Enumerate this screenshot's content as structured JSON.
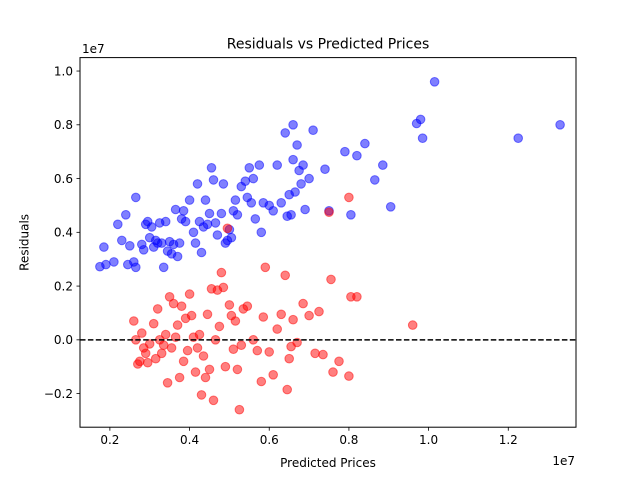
{
  "chart_data": {
    "type": "scatter",
    "title": "Residuals vs Predicted Prices",
    "xlabel": "Predicted Prices",
    "ylabel": "Residuals",
    "x_offset_label": "1e7",
    "y_offset_label": "1e7",
    "xlim": [
      1.25,
      13.7
    ],
    "ylim": [
      -3.25,
      10.5
    ],
    "x_ticks": [
      2,
      4,
      6,
      8,
      10,
      12
    ],
    "x_tick_labels": [
      "0.2",
      "0.4",
      "0.6",
      "0.8",
      "1.0",
      "1.2"
    ],
    "y_ticks": [
      -2,
      0,
      2,
      4,
      6,
      8,
      10
    ],
    "y_tick_labels": [
      "−0.2",
      "0.0",
      "0.2",
      "0.4",
      "0.6",
      "0.8",
      "1.0"
    ],
    "grid": false,
    "reference_line": {
      "y": 0,
      "style": "dashed",
      "color": "#000000"
    },
    "series": [
      {
        "color": "#0000ff",
        "points": [
          [
            1.75,
            2.72
          ],
          [
            1.85,
            3.45
          ],
          [
            1.9,
            2.8
          ],
          [
            2.1,
            2.9
          ],
          [
            2.2,
            4.3
          ],
          [
            2.3,
            3.7
          ],
          [
            2.4,
            4.65
          ],
          [
            2.45,
            2.8
          ],
          [
            2.5,
            3.5
          ],
          [
            2.6,
            2.9
          ],
          [
            2.65,
            5.3
          ],
          [
            2.65,
            2.7
          ],
          [
            2.8,
            3.55
          ],
          [
            2.85,
            3.35
          ],
          [
            2.9,
            4.3
          ],
          [
            2.95,
            4.4
          ],
          [
            3.0,
            3.8
          ],
          [
            3.05,
            4.2
          ],
          [
            3.1,
            3.45
          ],
          [
            3.15,
            3.7
          ],
          [
            3.2,
            3.6
          ],
          [
            3.25,
            4.35
          ],
          [
            3.3,
            3.6
          ],
          [
            3.35,
            2.7
          ],
          [
            3.4,
            4.4
          ],
          [
            3.45,
            3.3
          ],
          [
            3.5,
            3.65
          ],
          [
            3.55,
            3.2
          ],
          [
            3.6,
            3.55
          ],
          [
            3.65,
            4.85
          ],
          [
            3.7,
            3.1
          ],
          [
            3.75,
            3.6
          ],
          [
            3.8,
            4.5
          ],
          [
            3.85,
            4.8
          ],
          [
            3.9,
            4.4
          ],
          [
            4.0,
            5.2
          ],
          [
            4.1,
            4.0
          ],
          [
            4.15,
            3.6
          ],
          [
            4.2,
            5.8
          ],
          [
            4.25,
            4.4
          ],
          [
            4.3,
            3.25
          ],
          [
            4.35,
            4.2
          ],
          [
            4.4,
            5.2
          ],
          [
            4.45,
            4.3
          ],
          [
            4.5,
            4.7
          ],
          [
            4.55,
            6.4
          ],
          [
            4.6,
            5.95
          ],
          [
            4.65,
            4.35
          ],
          [
            4.7,
            3.9
          ],
          [
            4.8,
            4.7
          ],
          [
            4.85,
            5.8
          ],
          [
            4.9,
            3.6
          ],
          [
            4.95,
            3.7
          ],
          [
            5.0,
            4.1
          ],
          [
            5.05,
            3.8
          ],
          [
            5.1,
            4.8
          ],
          [
            5.15,
            5.2
          ],
          [
            5.2,
            4.65
          ],
          [
            5.3,
            5.7
          ],
          [
            5.4,
            5.9
          ],
          [
            5.45,
            5.3
          ],
          [
            5.5,
            6.4
          ],
          [
            5.55,
            5.1
          ],
          [
            5.6,
            6.0
          ],
          [
            5.65,
            4.5
          ],
          [
            5.75,
            6.5
          ],
          [
            5.8,
            4.0
          ],
          [
            5.85,
            5.1
          ],
          [
            6.0,
            5.0
          ],
          [
            6.1,
            4.8
          ],
          [
            6.2,
            6.5
          ],
          [
            6.3,
            5.1
          ],
          [
            6.4,
            7.7
          ],
          [
            6.45,
            4.6
          ],
          [
            6.5,
            5.4
          ],
          [
            6.55,
            4.65
          ],
          [
            6.6,
            8.0
          ],
          [
            6.6,
            6.7
          ],
          [
            6.65,
            5.5
          ],
          [
            6.7,
            7.25
          ],
          [
            6.75,
            6.3
          ],
          [
            6.8,
            5.8
          ],
          [
            6.85,
            6.5
          ],
          [
            6.9,
            4.85
          ],
          [
            7.0,
            6.0
          ],
          [
            7.1,
            7.8
          ],
          [
            7.4,
            6.35
          ],
          [
            7.5,
            4.8
          ],
          [
            7.9,
            7.0
          ],
          [
            8.05,
            4.65
          ],
          [
            8.2,
            6.85
          ],
          [
            8.4,
            7.3
          ],
          [
            8.65,
            5.95
          ],
          [
            8.85,
            6.5
          ],
          [
            9.05,
            4.95
          ],
          [
            9.7,
            8.05
          ],
          [
            9.8,
            8.2
          ],
          [
            9.85,
            7.5
          ],
          [
            10.15,
            9.6
          ],
          [
            12.25,
            7.5
          ],
          [
            13.3,
            8.0
          ]
        ]
      },
      {
        "color": "#ff0000",
        "points": [
          [
            2.6,
            0.7
          ],
          [
            2.65,
            0.0
          ],
          [
            2.7,
            -0.9
          ],
          [
            2.75,
            -0.8
          ],
          [
            2.8,
            0.25
          ],
          [
            2.85,
            -0.3
          ],
          [
            2.9,
            -0.5
          ],
          [
            2.95,
            -0.85
          ],
          [
            3.0,
            -0.15
          ],
          [
            3.1,
            0.6
          ],
          [
            3.15,
            -0.7
          ],
          [
            3.2,
            1.15
          ],
          [
            3.25,
            0.0
          ],
          [
            3.3,
            -0.5
          ],
          [
            3.35,
            -0.2
          ],
          [
            3.4,
            0.2
          ],
          [
            3.45,
            -1.6
          ],
          [
            3.5,
            1.6
          ],
          [
            3.55,
            -0.3
          ],
          [
            3.6,
            1.35
          ],
          [
            3.65,
            0.1
          ],
          [
            3.7,
            0.55
          ],
          [
            3.75,
            -1.4
          ],
          [
            3.8,
            1.25
          ],
          [
            3.85,
            -0.8
          ],
          [
            3.9,
            0.8
          ],
          [
            3.95,
            -0.4
          ],
          [
            4.0,
            1.7
          ],
          [
            4.05,
            0.9
          ],
          [
            4.1,
            0.1
          ],
          [
            4.15,
            -1.2
          ],
          [
            4.2,
            -0.3
          ],
          [
            4.25,
            0.2
          ],
          [
            4.3,
            -2.05
          ],
          [
            4.35,
            -0.6
          ],
          [
            4.4,
            -1.4
          ],
          [
            4.45,
            0.95
          ],
          [
            4.5,
            -1.1
          ],
          [
            4.55,
            1.9
          ],
          [
            4.6,
            -2.25
          ],
          [
            4.65,
            0.0
          ],
          [
            4.7,
            1.85
          ],
          [
            4.75,
            0.5
          ],
          [
            4.8,
            2.5
          ],
          [
            4.85,
            1.95
          ],
          [
            4.9,
            -1.0
          ],
          [
            4.95,
            4.15
          ],
          [
            5.0,
            1.3
          ],
          [
            5.05,
            0.9
          ],
          [
            5.1,
            -0.35
          ],
          [
            5.15,
            0.7
          ],
          [
            5.2,
            -1.1
          ],
          [
            5.25,
            -2.6
          ],
          [
            5.3,
            -0.2
          ],
          [
            5.35,
            1.15
          ],
          [
            5.45,
            1.25
          ],
          [
            5.6,
            0.0
          ],
          [
            5.7,
            -0.4
          ],
          [
            5.8,
            -1.55
          ],
          [
            5.85,
            0.85
          ],
          [
            5.9,
            2.7
          ],
          [
            6.0,
            -0.45
          ],
          [
            6.1,
            -1.3
          ],
          [
            6.2,
            0.4
          ],
          [
            6.3,
            0.95
          ],
          [
            6.4,
            2.4
          ],
          [
            6.45,
            -1.85
          ],
          [
            6.5,
            -0.7
          ],
          [
            6.55,
            -0.25
          ],
          [
            6.6,
            0.75
          ],
          [
            6.7,
            -0.1
          ],
          [
            6.85,
            1.35
          ],
          [
            7.0,
            0.9
          ],
          [
            7.15,
            -0.5
          ],
          [
            7.25,
            1.05
          ],
          [
            7.35,
            -0.55
          ],
          [
            7.5,
            4.75
          ],
          [
            7.55,
            2.25
          ],
          [
            7.6,
            -1.2
          ],
          [
            7.75,
            -0.8
          ],
          [
            8.0,
            5.3
          ],
          [
            8.05,
            1.6
          ],
          [
            8.0,
            -1.35
          ],
          [
            8.2,
            1.6
          ],
          [
            9.6,
            0.55
          ]
        ]
      }
    ]
  }
}
